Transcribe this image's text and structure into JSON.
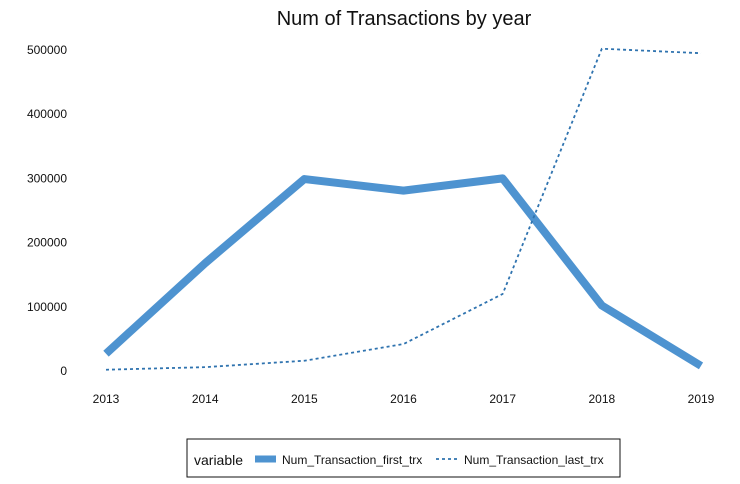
{
  "chart_data": {
    "type": "line",
    "title": "Num of Transactions by year",
    "x": [
      "2013",
      "2014",
      "2015",
      "2016",
      "2017",
      "2018",
      "2019"
    ],
    "y_ticks": [
      "0",
      "100000",
      "200000",
      "300000",
      "400000",
      "500000"
    ],
    "ylim": [
      0,
      520000
    ],
    "series": [
      {
        "name": "Num_Transaction_first_trx",
        "values": [
          27000,
          168000,
          299000,
          281000,
          300000,
          102000,
          8000
        ],
        "color": "#4E93D0",
        "style": "solid-thick"
      },
      {
        "name": "Num_Transaction_last_trx",
        "values": [
          2000,
          6000,
          16000,
          42000,
          120000,
          502000,
          495000
        ],
        "color": "#2F73AF",
        "style": "dashed-thin"
      }
    ],
    "legend": {
      "title": "variable",
      "position": "bottom"
    },
    "grid": false,
    "xlabel": "",
    "ylabel": ""
  }
}
